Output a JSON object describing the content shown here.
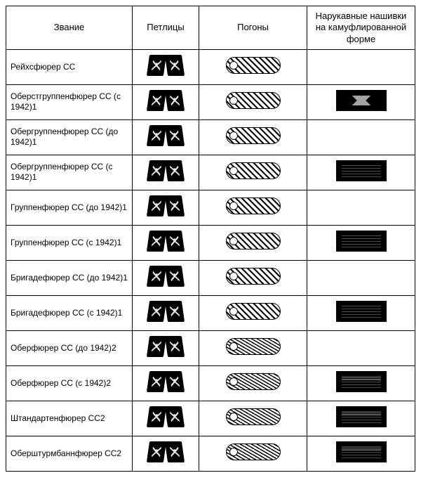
{
  "headers": {
    "rank": "Звание",
    "collar": "Петлицы",
    "board": "Погоны",
    "sleeve": "Нарукавные нашивки на камуфлированной форме"
  },
  "ranks": [
    {
      "label": "Рейхсфюрер СС",
      "board": "plain",
      "sleeve": null
    },
    {
      "label": "Оберстгруппенфюрер СС (с 1942)1",
      "board": "plain",
      "sleeve": "diamond"
    },
    {
      "label": "Обергруппенфюрер СС (до 1942)1",
      "board": "plain",
      "sleeve": null
    },
    {
      "label": "Обергруппенфюрер СС (с 1942)1",
      "board": "plain",
      "sleeve": "stripe"
    },
    {
      "label": "Группенфюрер СС (до 1942)1",
      "board": "plain",
      "sleeve": null
    },
    {
      "label": "Группенфюрер СС (с 1942)1",
      "board": "plain",
      "sleeve": "stripe"
    },
    {
      "label": "Бригадефюрер СС (до 1942)1",
      "board": "plain",
      "sleeve": null
    },
    {
      "label": "Бригадефюрер СС (с 1942)1",
      "board": "plain",
      "sleeve": "stripe"
    },
    {
      "label": "Оберфюрер СС (до 1942)2",
      "board": "tight",
      "sleeve": null
    },
    {
      "label": "Оберфюрер СС (с 1942)2",
      "board": "tight",
      "sleeve": "double"
    },
    {
      "label": "Штандартенфюрер СС2",
      "board": "tight",
      "sleeve": "double"
    },
    {
      "label": "Оберштурмбаннфюрер СС2",
      "board": "tight",
      "sleeve": "double"
    }
  ],
  "colors": {
    "border": "#000000",
    "bg": "#ffffff"
  }
}
